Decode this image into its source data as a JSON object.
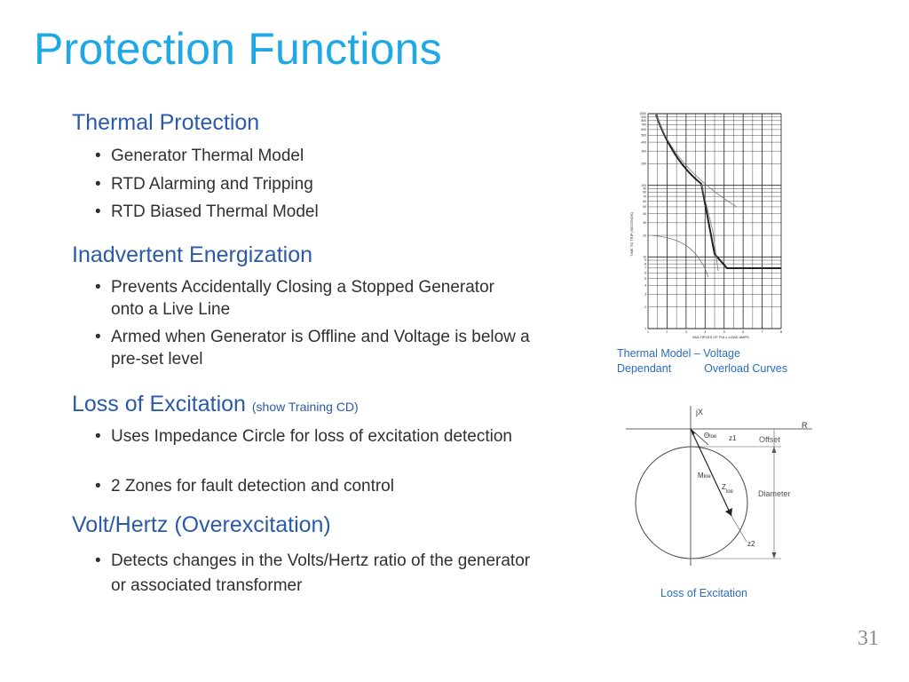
{
  "slide": {
    "title": "Protection Functions",
    "page_number": "31"
  },
  "sections": [
    {
      "heading": "Thermal Protection",
      "bullets": [
        "Generator Thermal Model",
        "RTD Alarming and Tripping",
        "RTD Biased Thermal Model"
      ]
    },
    {
      "heading": "Inadvertent Energization",
      "bullets": [
        "Prevents Accidentally Closing a Stopped Generator onto a Live Line",
        "Armed when Generator is Offline and Voltage is below a pre-set level"
      ]
    },
    {
      "heading": "Loss of Excitation",
      "heading_note": "(show Training CD)",
      "bullets": [
        "Uses Impedance Circle for loss of excitation detection",
        "2 Zones for fault detection and control"
      ]
    },
    {
      "heading": "Volt/Hertz (Overexcitation)",
      "bullets": [
        "Detects changes in the Volts/Hertz ratio of the generator or associated transformer"
      ]
    }
  ],
  "figures": {
    "thermal": {
      "caption_line1": "Thermal Model – Voltage",
      "caption_line2_a": "Dependant",
      "caption_line2_b": "Overload Curves",
      "xlabel": "MULTIPLES OF FULL LOAD AMPS",
      "ylabel": "TIME TO TRIP (SECONDS)",
      "x_ticks": [
        "1",
        "2",
        "3",
        "4",
        "5",
        "6",
        "7",
        "8"
      ],
      "y_ticks": [
        "1000",
        "900",
        "800",
        "700",
        "600",
        "500",
        "400",
        "300",
        "200",
        "100",
        "90",
        "80",
        "70",
        "60",
        "50",
        "40",
        "30",
        "20",
        "10",
        "9",
        "8",
        "7",
        "6",
        "5",
        "4",
        "3",
        "2",
        "1"
      ]
    },
    "loe": {
      "caption": "Loss of Excitation",
      "labels": {
        "jx": "jX",
        "r": "R",
        "theta": "Θ",
        "theta_sub": "loe",
        "z1": "z1",
        "offset": "Offset",
        "m": "M",
        "m_sub": "loe",
        "z": "Z",
        "z_sub": "loe",
        "diameter": "Diameter",
        "z2": "z2"
      }
    }
  },
  "colors": {
    "title": "#1ea8e6",
    "heading": "#2a5aa8",
    "caption": "#2a6cc0",
    "body_text": "#303030"
  }
}
